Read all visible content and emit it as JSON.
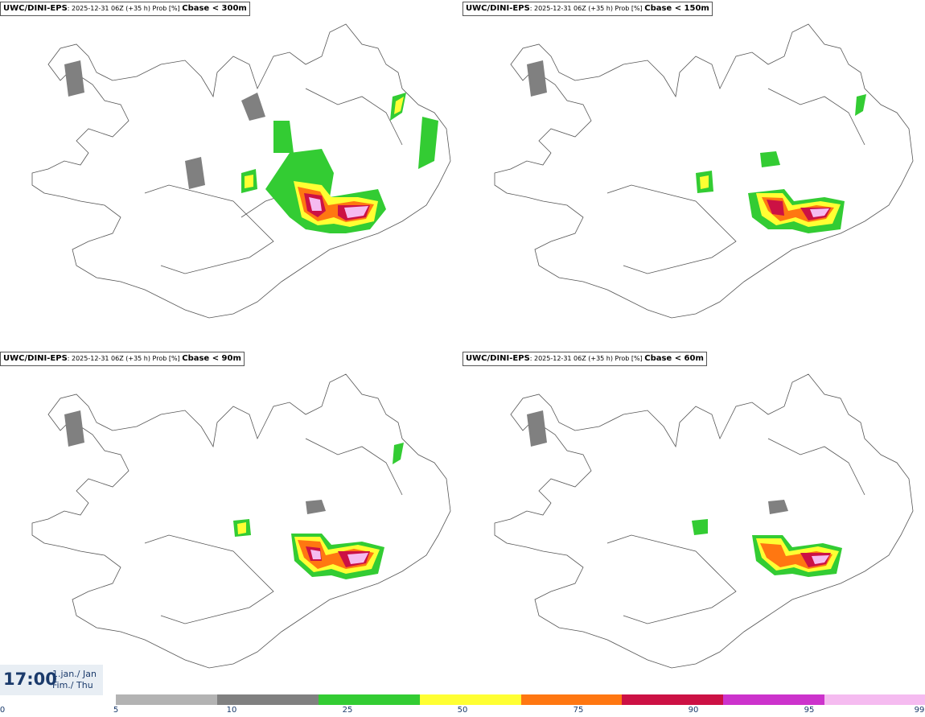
{
  "panels": [
    {
      "model": "UWC/DINI-EPS",
      "meta": ": 2025-12-31 06Z (+35 h) Prob [%] ",
      "variable": "Cbase < 300m"
    },
    {
      "model": "UWC/DINI-EPS",
      "meta": ": 2025-12-31 06Z (+35 h) Prob [%] ",
      "variable": "Cbase < 150m"
    },
    {
      "model": "UWC/DINI-EPS",
      "meta": ": 2025-12-31 06Z (+35 h) Prob [%] ",
      "variable": "Cbase < 90m"
    },
    {
      "model": "UWC/DINI-EPS",
      "meta": ": 2025-12-31 06Z (+35 h) Prob [%] ",
      "variable": "Cbase < 60m"
    }
  ],
  "valid_time": {
    "time": "17:00",
    "date_line1": "1.jan./ Jan",
    "date_line2": "Fim./ Thu"
  },
  "legend": {
    "ticks": [
      "0",
      "5",
      "10",
      "25",
      "50",
      "75",
      "90",
      "95",
      "99"
    ],
    "colors": [
      "#b3b3b3",
      "#808080",
      "#33cc33",
      "#ffff33",
      "#ff7711",
      "#cc1144",
      "#cc33cc",
      "#f5bbf0"
    ]
  }
}
